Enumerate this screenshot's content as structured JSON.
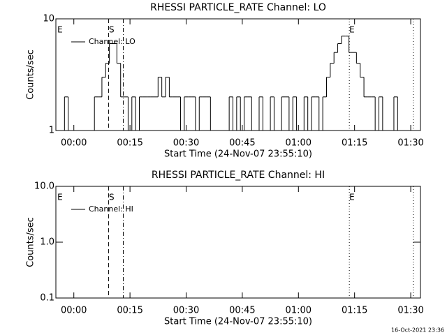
{
  "chart_data": [
    {
      "type": "line",
      "title": "RHESSI PARTICLE_RATE Channel: LO",
      "xlabel": "Start Time (24-Nov-07 23:55:10)",
      "ylabel": "Counts/sec",
      "log_y": true,
      "xlim": [
        -4.8,
        92.6
      ],
      "ylim": [
        1,
        10
      ],
      "xticks": [
        {
          "value": 0,
          "label": "00:00"
        },
        {
          "value": 15,
          "label": "00:15"
        },
        {
          "value": 30,
          "label": "00:30"
        },
        {
          "value": 45,
          "label": "00:45"
        },
        {
          "value": 60,
          "label": "01:00"
        },
        {
          "value": 75,
          "label": "01:15"
        },
        {
          "value": 90,
          "label": "01:30"
        }
      ],
      "yticks": [
        1,
        10
      ],
      "vlines": [
        {
          "x": 9.3,
          "style": "dashed"
        },
        {
          "x": 13.2,
          "style": "dashdot"
        },
        {
          "x": 73.6,
          "style": "dotted"
        },
        {
          "x": 90.7,
          "style": "dotted"
        }
      ],
      "flags": [
        {
          "label": "E",
          "x": -3.7
        },
        {
          "label": "S",
          "x": 10.1
        },
        {
          "label": "E",
          "x": 74.3
        }
      ],
      "series": [
        {
          "name": "Channel: LO",
          "color": "#000000",
          "x": [
            -3,
            -2,
            -1,
            0,
            1,
            2,
            3,
            4,
            5,
            6,
            7,
            8,
            9,
            10,
            11,
            12,
            13,
            14,
            15,
            16,
            17,
            18,
            19,
            20,
            21,
            22,
            23,
            24,
            25,
            26,
            27,
            28,
            29,
            30,
            31,
            32,
            33,
            34,
            35,
            36,
            37,
            38,
            39,
            40,
            41,
            42,
            43,
            44,
            45,
            46,
            47,
            48,
            49,
            50,
            51,
            52,
            53,
            54,
            55,
            56,
            57,
            58,
            59,
            60,
            61,
            62,
            63,
            64,
            65,
            66,
            67,
            68,
            69,
            70,
            71,
            72,
            73,
            74,
            75,
            76,
            77,
            78,
            79,
            80,
            81,
            82,
            83,
            84,
            85,
            86,
            87
          ],
          "values": [
            1,
            2,
            1,
            1,
            1,
            1,
            1,
            1,
            1,
            2,
            2,
            3,
            4,
            6,
            6,
            4,
            2,
            2,
            1,
            2,
            1,
            2,
            2,
            2,
            2,
            2,
            3,
            2,
            3,
            2,
            2,
            2,
            1,
            2,
            2,
            2,
            1,
            2,
            2,
            2,
            1,
            1,
            1,
            1,
            1,
            2,
            1,
            2,
            1,
            2,
            2,
            1,
            1,
            2,
            1,
            1,
            2,
            1,
            1,
            2,
            2,
            1,
            2,
            1,
            1,
            2,
            1,
            2,
            2,
            1,
            2,
            3,
            4,
            5,
            6,
            7,
            7,
            5,
            5,
            4,
            3,
            2,
            2,
            2,
            1,
            2,
            1,
            1,
            1,
            2,
            1
          ]
        }
      ]
    },
    {
      "type": "line",
      "title": "RHESSI PARTICLE_RATE Channel: HI",
      "xlabel": "Start Time (24-Nov-07 23:55:10)",
      "ylabel": "Counts/sec",
      "log_y": true,
      "xlim": [
        -4.8,
        92.6
      ],
      "ylim": [
        0.1,
        10
      ],
      "xticks": [
        {
          "value": 0,
          "label": "00:00"
        },
        {
          "value": 15,
          "label": "00:15"
        },
        {
          "value": 30,
          "label": "00:30"
        },
        {
          "value": 45,
          "label": "00:45"
        },
        {
          "value": 60,
          "label": "01:00"
        },
        {
          "value": 75,
          "label": "01:15"
        },
        {
          "value": 90,
          "label": "01:30"
        }
      ],
      "yticks": [
        0.1,
        {
          "value": 1,
          "label": "1.0"
        },
        {
          "value": 10,
          "label": "10.0"
        }
      ],
      "vlines": [
        {
          "x": 9.3,
          "style": "dashed"
        },
        {
          "x": 13.2,
          "style": "dashdot"
        },
        {
          "x": 73.6,
          "style": "dotted"
        },
        {
          "x": 90.7,
          "style": "dotted"
        }
      ],
      "flags": [
        {
          "label": "E",
          "x": -3.7
        },
        {
          "label": "S",
          "x": 10.1
        },
        {
          "label": "E",
          "x": 74.3
        }
      ],
      "series": [
        {
          "name": "Channel: HI",
          "color": "#000000",
          "x": [],
          "values": []
        }
      ]
    }
  ],
  "footer": "16-Oct-2021 23:36"
}
